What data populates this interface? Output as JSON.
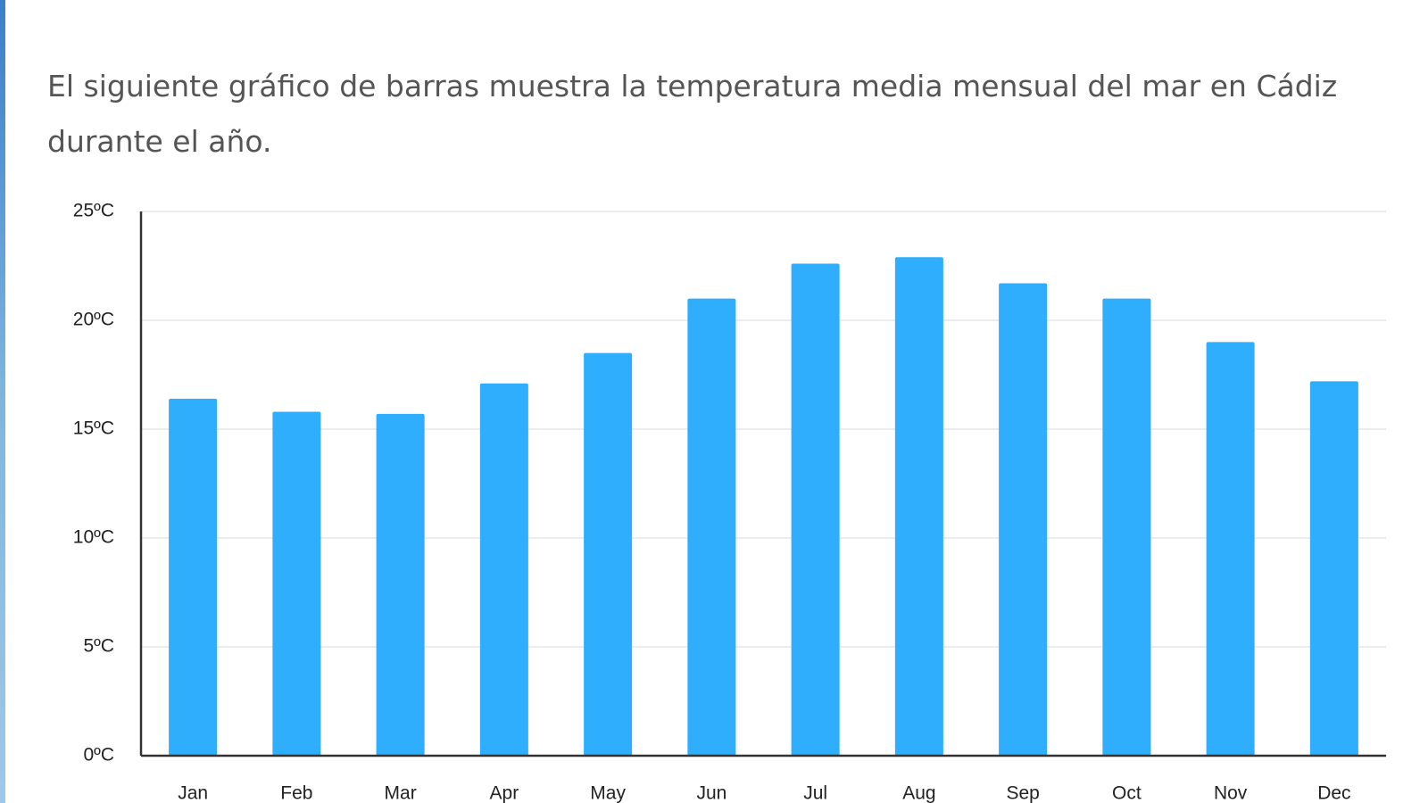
{
  "intro": "El siguiente gráfico de barras muestra la temperatura media mensual del mar en Cádiz durante el año.",
  "chart_data": {
    "type": "bar",
    "categories": [
      "Jan",
      "Feb",
      "Mar",
      "Apr",
      "May",
      "Jun",
      "Jul",
      "Aug",
      "Sep",
      "Oct",
      "Nov",
      "Dec"
    ],
    "values": [
      16.4,
      15.8,
      15.7,
      17.1,
      18.5,
      21.0,
      22.6,
      22.9,
      21.7,
      21.0,
      19.0,
      17.2
    ],
    "color": "#2eaefc",
    "ylim": [
      0,
      25
    ],
    "yticks": [
      {
        "value": 0,
        "label": "0ºC"
      },
      {
        "value": 5,
        "label": "5ºC"
      },
      {
        "value": 10,
        "label": "10ºC"
      },
      {
        "value": 15,
        "label": "15ºC"
      },
      {
        "value": 20,
        "label": "20ºC"
      },
      {
        "value": 25,
        "label": "25ºC"
      }
    ],
    "grid": true
  }
}
